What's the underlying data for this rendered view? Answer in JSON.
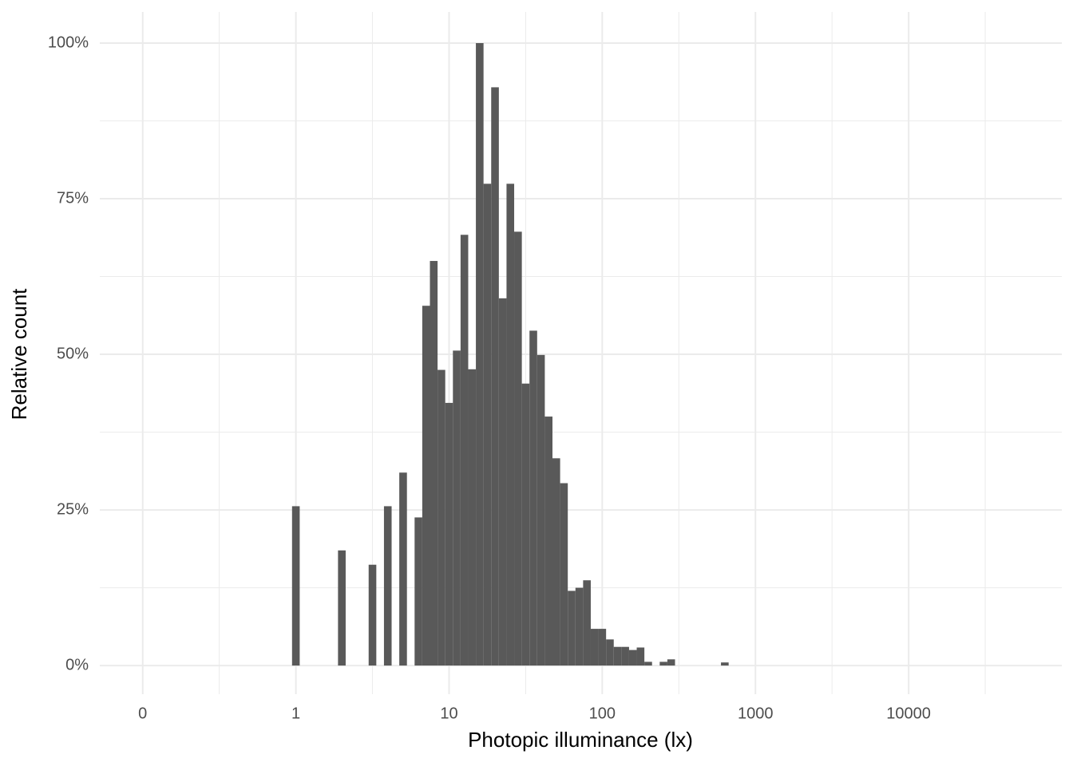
{
  "chart_data": {
    "type": "histogram",
    "xlabel": "Photopic illuminance (lx)",
    "ylabel": "Relative count",
    "bins": [
      -0.025,
      0.025,
      0.075,
      0.125,
      0.175,
      0.225,
      0.275,
      0.325,
      0.375,
      0.425,
      0.475,
      0.525,
      0.575,
      0.625,
      0.675,
      0.725,
      0.775,
      0.825,
      0.875,
      0.925,
      0.975,
      1.025,
      1.075,
      1.125,
      1.175,
      1.225,
      1.275,
      1.325,
      1.375,
      1.425,
      1.475,
      1.525,
      1.575,
      1.625,
      1.675,
      1.725,
      1.775,
      1.825,
      1.875,
      1.925,
      1.975,
      2.025,
      2.075,
      2.125,
      2.175,
      2.225,
      2.275,
      2.325,
      2.375,
      2.425,
      2.475,
      2.525,
      2.575,
      2.625,
      2.675,
      2.725,
      2.775,
      2.825
    ],
    "values": [
      25.6,
      0,
      0,
      0,
      0,
      0,
      18.5,
      0,
      0,
      0,
      16.2,
      0,
      25.6,
      0,
      31,
      0,
      23.8,
      57.8,
      65,
      47.5,
      42.2,
      50.6,
      69.2,
      47.6,
      100,
      77.4,
      92.9,
      59,
      77.4,
      69.7,
      45.3,
      53.8,
      49.9,
      40,
      33.3,
      29.3,
      12,
      12.5,
      13.7,
      5.9,
      5.9,
      4.2,
      3,
      3,
      2.5,
      2.9,
      0.6,
      0,
      0.6,
      1,
      0,
      0,
      0,
      0,
      0,
      0,
      0.5
    ],
    "color": "#595959",
    "xlim": [
      -1.28,
      5
    ],
    "xticks": [
      {
        "value": -1,
        "label": "0"
      },
      {
        "value": 0,
        "label": "1"
      },
      {
        "value": 1,
        "label": "10"
      },
      {
        "value": 2,
        "label": "100"
      },
      {
        "value": 3,
        "label": "1000"
      },
      {
        "value": 4,
        "label": "10000"
      }
    ],
    "xminor": [
      -0.5,
      0.5,
      1.5,
      2.5,
      3.5,
      4.5
    ],
    "ylim": [
      -4.6,
      105
    ],
    "yticks": [
      {
        "value": 0,
        "label": "0%"
      },
      {
        "value": 25,
        "label": "25%"
      },
      {
        "value": 50,
        "label": "50%"
      },
      {
        "value": 75,
        "label": "75%"
      },
      {
        "value": 100,
        "label": "100%"
      }
    ],
    "yminor": [
      12.5,
      37.5,
      62.5,
      87.5
    ],
    "grid": true
  }
}
